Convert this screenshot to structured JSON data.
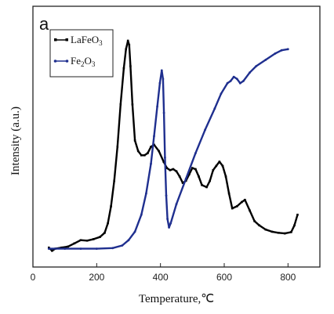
{
  "chart_data": {
    "type": "line",
    "panel_label": "a",
    "xlabel": "Temperature,℃",
    "ylabel": "Intensity (a.u.)",
    "xlim": [
      0,
      900
    ],
    "ylim": [
      0,
      100
    ],
    "xticks": [
      0,
      200,
      400,
      600,
      800
    ],
    "grid": false,
    "legend": "top-left",
    "series": [
      {
        "name": "LaFeO3",
        "legend_main": "LaFeO",
        "legend_sub": "3",
        "color": "#000000",
        "marker": "square",
        "x": [
          50,
          60,
          70,
          90,
          110,
          130,
          150,
          170,
          190,
          210,
          225,
          235,
          245,
          255,
          265,
          275,
          285,
          292,
          298,
          302,
          306,
          312,
          320,
          330,
          340,
          350,
          360,
          370,
          380,
          395,
          410,
          420,
          430,
          440,
          450,
          460,
          470,
          480,
          490,
          500,
          510,
          520,
          530,
          545,
          555,
          565,
          575,
          585,
          595,
          605,
          615,
          625,
          640,
          655,
          665,
          680,
          695,
          710,
          730,
          750,
          770,
          790,
          810,
          820,
          830
        ],
        "y": [
          2.5,
          1.0,
          2.0,
          2.5,
          3.0,
          4.5,
          6.0,
          5.8,
          6.5,
          7.5,
          9.5,
          14,
          22,
          34,
          50,
          70,
          87,
          96,
          100,
          98,
          88,
          70,
          53,
          48,
          46,
          46,
          47,
          50,
          51,
          48,
          43,
          40,
          39,
          39.5,
          38.5,
          36,
          33,
          34,
          37,
          40,
          39.5,
          36,
          32,
          31,
          34,
          39,
          41,
          43,
          41,
          36,
          28,
          21,
          22,
          24,
          25,
          20,
          15,
          13,
          11,
          10,
          9.5,
          9.2,
          9.8,
          13,
          18
        ]
      },
      {
        "name": "Fe2O3",
        "legend_main": "Fe",
        "legend_sub1": "2",
        "legend_mid": "O",
        "legend_sub2": "3",
        "color": "#1f2f8f",
        "marker": "circle",
        "x": [
          50,
          100,
          150,
          200,
          250,
          280,
          300,
          320,
          340,
          355,
          370,
          380,
          390,
          398,
          404,
          408,
          411,
          414,
          418,
          422,
          427,
          432,
          450,
          480,
          510,
          540,
          570,
          590,
          610,
          620,
          630,
          640,
          650,
          660,
          680,
          700,
          730,
          760,
          780,
          800
        ],
        "y": [
          2.0,
          2.0,
          2.0,
          2.0,
          2.3,
          3.5,
          6.0,
          10,
          18,
          28,
          42,
          55,
          69,
          80,
          86,
          82,
          66,
          45,
          27,
          16,
          12,
          14,
          23,
          35,
          47,
          58,
          68,
          75,
          80,
          81,
          83,
          82,
          80,
          81,
          85,
          88,
          91,
          94,
          95.5,
          96
        ]
      }
    ]
  }
}
